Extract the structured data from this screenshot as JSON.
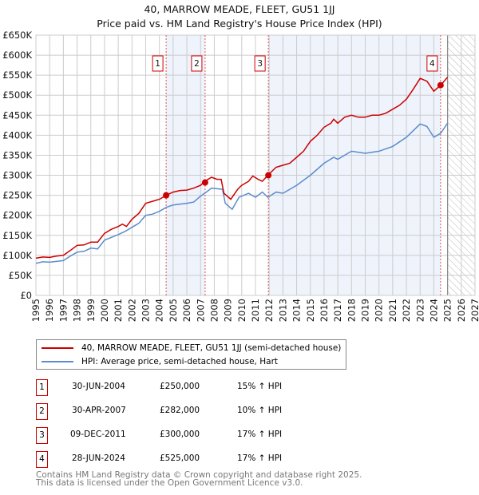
{
  "title": "40, MARROW MEADE, FLEET, GU51 1JJ",
  "subtitle": "Price paid vs. HM Land Registry's House Price Index (HPI)",
  "chart_data": {
    "type": "line",
    "xlim": [
      1995,
      2027
    ],
    "ylim": [
      0,
      650000
    ],
    "x_ticks": [
      "1995",
      "1996",
      "1997",
      "1998",
      "1999",
      "2000",
      "2001",
      "2002",
      "2003",
      "2004",
      "2005",
      "2006",
      "2007",
      "2008",
      "2009",
      "2010",
      "2011",
      "2012",
      "2013",
      "2014",
      "2015",
      "2016",
      "2017",
      "2018",
      "2019",
      "2020",
      "2021",
      "2022",
      "2023",
      "2024",
      "2025",
      "2026",
      "2027"
    ],
    "y_ticks": [
      {
        "v": 0,
        "label": "£0"
      },
      {
        "v": 50000,
        "label": "£50K"
      },
      {
        "v": 100000,
        "label": "£100K"
      },
      {
        "v": 150000,
        "label": "£150K"
      },
      {
        "v": 200000,
        "label": "£200K"
      },
      {
        "v": 250000,
        "label": "£250K"
      },
      {
        "v": 300000,
        "label": "£300K"
      },
      {
        "v": 350000,
        "label": "£350K"
      },
      {
        "v": 400000,
        "label": "£400K"
      },
      {
        "v": 450000,
        "label": "£450K"
      },
      {
        "v": 500000,
        "label": "£500K"
      },
      {
        "v": 550000,
        "label": "£550K"
      },
      {
        "v": 600000,
        "label": "£600K"
      },
      {
        "v": 650000,
        "label": "£650K"
      }
    ],
    "grid": true,
    "shaded_periods": [
      [
        2004.49,
        2007.33
      ],
      [
        2011.94,
        2024.49
      ]
    ],
    "forecast_start": 2025.0,
    "series": [
      {
        "name": "40, MARROW MEADE, FLEET, GU51 1JJ (semi-detached house)",
        "color": "#cc0000",
        "x": [
          1995,
          1995.5,
          1996,
          1996.5,
          1997,
          1997.5,
          1998,
          1998.5,
          1999,
          1999.5,
          2000,
          2000.5,
          2001,
          2001.3,
          2001.6,
          2002,
          2002.5,
          2003,
          2003.5,
          2004,
          2004.5,
          2005,
          2005.5,
          2006,
          2006.5,
          2007,
          2007.3,
          2007.8,
          2008.2,
          2008.5,
          2008.7,
          2009.2,
          2009.7,
          2010,
          2010.5,
          2010.8,
          2011.2,
          2011.5,
          2011.9,
          2012.5,
          2013,
          2013.5,
          2014,
          2014.5,
          2015,
          2015.5,
          2016,
          2016.5,
          2016.7,
          2017,
          2017.5,
          2018,
          2018.5,
          2019,
          2019.5,
          2020,
          2020.5,
          2021,
          2021.5,
          2022,
          2022.5,
          2023,
          2023.5,
          2024,
          2024.5,
          2025
        ],
        "y": [
          93000,
          96000,
          95000,
          98000,
          100000,
          112000,
          125000,
          126000,
          133000,
          133000,
          155000,
          165000,
          172000,
          178000,
          172000,
          190000,
          205000,
          230000,
          235000,
          240000,
          250000,
          258000,
          262000,
          263000,
          268000,
          275000,
          285000,
          295000,
          290000,
          290000,
          255000,
          240000,
          265000,
          275000,
          285000,
          298000,
          290000,
          285000,
          300000,
          320000,
          325000,
          330000,
          345000,
          360000,
          385000,
          400000,
          420000,
          430000,
          440000,
          430000,
          445000,
          450000,
          445000,
          445000,
          450000,
          450000,
          455000,
          465000,
          475000,
          490000,
          515000,
          542000,
          535000,
          510000,
          525000,
          545000
        ]
      },
      {
        "name": "HPI: Average price, semi-detached house, Hart",
        "color": "#5b8ccc",
        "x": [
          1995,
          1995.5,
          1996,
          1996.5,
          1997,
          1997.5,
          1998,
          1998.5,
          1999,
          1999.5,
          2000,
          2000.5,
          2001,
          2001.5,
          2002,
          2002.5,
          2003,
          2003.5,
          2004,
          2004.5,
          2005,
          2006,
          2006.5,
          2007,
          2007.3,
          2007.8,
          2008.6,
          2008.8,
          2009.3,
          2009.8,
          2010.5,
          2011,
          2011.5,
          2011.9,
          2012.5,
          2013,
          2013.5,
          2014,
          2015,
          2016,
          2016.7,
          2017,
          2018,
          2019,
          2020,
          2021,
          2022,
          2023,
          2023.5,
          2024,
          2024.5,
          2025
        ],
        "y": [
          80000,
          84000,
          83000,
          85000,
          87000,
          98000,
          108000,
          110000,
          118000,
          116000,
          138000,
          145000,
          152000,
          160000,
          170000,
          180000,
          200000,
          203000,
          210000,
          220000,
          226000,
          230000,
          233000,
          248000,
          255000,
          268000,
          265000,
          230000,
          215000,
          245000,
          255000,
          245000,
          258000,
          245000,
          258000,
          255000,
          265000,
          275000,
          300000,
          330000,
          345000,
          340000,
          360000,
          355000,
          360000,
          372000,
          395000,
          428000,
          422000,
          395000,
          405000,
          430000
        ]
      }
    ],
    "sales": [
      {
        "label": "1",
        "x": 2004.49,
        "y": 250000
      },
      {
        "label": "2",
        "x": 2007.33,
        "y": 282000
      },
      {
        "label": "3",
        "x": 2011.94,
        "y": 300000
      },
      {
        "label": "4",
        "x": 2024.49,
        "y": 525000
      }
    ]
  },
  "legend": [
    {
      "label": "40, MARROW MEADE, FLEET, GU51 1JJ (semi-detached house)",
      "color": "#cc0000"
    },
    {
      "label": "HPI: Average price, semi-detached house, Hart",
      "color": "#5b8ccc"
    }
  ],
  "transactions": [
    {
      "num": "1",
      "date": "30-JUN-2004",
      "price": "£250,000",
      "hpi": "15% ↑ HPI"
    },
    {
      "num": "2",
      "date": "30-APR-2007",
      "price": "£282,000",
      "hpi": "10% ↑ HPI"
    },
    {
      "num": "3",
      "date": "09-DEC-2011",
      "price": "£300,000",
      "hpi": "17% ↑ HPI"
    },
    {
      "num": "4",
      "date": "28-JUN-2024",
      "price": "£525,000",
      "hpi": "17% ↑ HPI"
    }
  ],
  "footer": {
    "line1": "Contains HM Land Registry data © Crown copyright and database right 2025.",
    "line2": "This data is licensed under the Open Government Licence v3.0."
  }
}
